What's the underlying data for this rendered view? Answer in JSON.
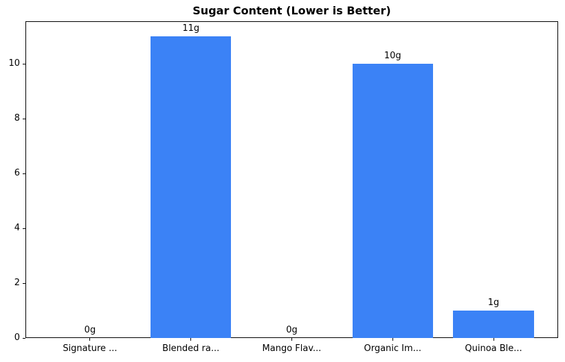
{
  "chart_data": {
    "type": "bar",
    "title": "Sugar Content (Lower is Better)",
    "categories": [
      "Signature ...",
      "Blended ra...",
      "Mango Flav...",
      "Organic Im...",
      "Quinoa Ble..."
    ],
    "values": [
      0,
      11,
      0,
      10,
      1
    ],
    "value_labels": [
      "0g",
      "11g",
      "0g",
      "10g",
      "1g"
    ],
    "yticks": [
      0,
      2,
      4,
      6,
      8,
      10
    ],
    "ylim": [
      0,
      11.55
    ],
    "xlabel": "",
    "ylabel": "",
    "grid": false,
    "legend": "none",
    "bar_color": "#3b82f6",
    "text_color": "#000000",
    "background_color": "#ffffff"
  }
}
